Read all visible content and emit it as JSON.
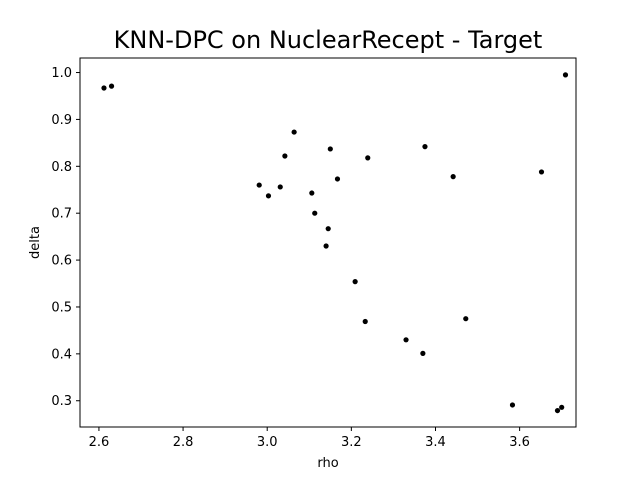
{
  "chart_data": {
    "type": "scatter",
    "title": "KNN-DPC on NuclearRecept - Target",
    "xlabel": "rho",
    "ylabel": "delta",
    "xlim": [
      2.555,
      3.734
    ],
    "ylim": [
      0.244,
      1.031
    ],
    "xticks": [
      "2.6",
      "2.8",
      "3.0",
      "3.2",
      "3.4",
      "3.6"
    ],
    "yticks": [
      "0.3",
      "0.4",
      "0.5",
      "0.6",
      "0.7",
      "0.8",
      "0.9",
      "1.0"
    ],
    "grid": false,
    "marker_color": "#000000",
    "points": [
      {
        "x": 2.612,
        "y": 0.967
      },
      {
        "x": 2.63,
        "y": 0.971
      },
      {
        "x": 2.981,
        "y": 0.76
      },
      {
        "x": 3.003,
        "y": 0.737
      },
      {
        "x": 3.031,
        "y": 0.756
      },
      {
        "x": 3.042,
        "y": 0.822
      },
      {
        "x": 3.064,
        "y": 0.873
      },
      {
        "x": 3.106,
        "y": 0.743
      },
      {
        "x": 3.113,
        "y": 0.7
      },
      {
        "x": 3.14,
        "y": 0.63
      },
      {
        "x": 3.145,
        "y": 0.667
      },
      {
        "x": 3.15,
        "y": 0.837
      },
      {
        "x": 3.167,
        "y": 0.773
      },
      {
        "x": 3.209,
        "y": 0.554
      },
      {
        "x": 3.233,
        "y": 0.469
      },
      {
        "x": 3.239,
        "y": 0.818
      },
      {
        "x": 3.33,
        "y": 0.43
      },
      {
        "x": 3.37,
        "y": 0.401
      },
      {
        "x": 3.375,
        "y": 0.842
      },
      {
        "x": 3.442,
        "y": 0.778
      },
      {
        "x": 3.472,
        "y": 0.475
      },
      {
        "x": 3.583,
        "y": 0.291
      },
      {
        "x": 3.652,
        "y": 0.788
      },
      {
        "x": 3.69,
        "y": 0.279
      },
      {
        "x": 3.7,
        "y": 0.286
      },
      {
        "x": 3.709,
        "y": 0.995
      }
    ]
  }
}
